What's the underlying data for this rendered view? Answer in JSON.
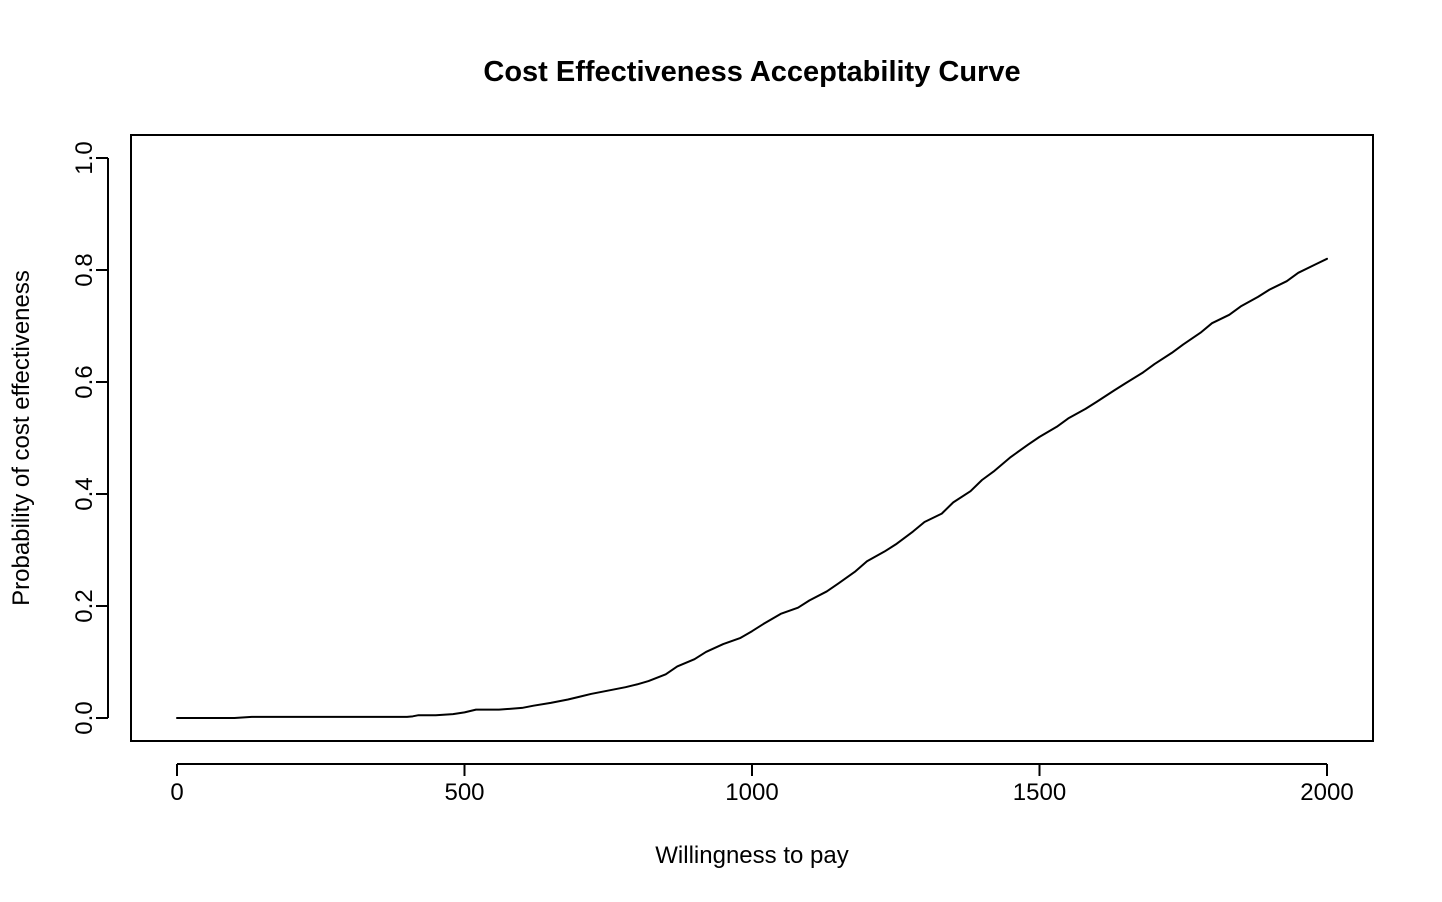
{
  "chart_data": {
    "type": "line",
    "title": "Cost Effectiveness Acceptability Curve",
    "xlabel": "Willingness to pay",
    "ylabel": "Probability of cost effectiveness",
    "xlim": [
      0,
      2000
    ],
    "ylim": [
      0,
      1
    ],
    "xticks": [
      0,
      500,
      1000,
      1500,
      2000
    ],
    "xtick_labels": [
      "0",
      "500",
      "1000",
      "1500",
      "2000"
    ],
    "yticks": [
      0,
      0.2,
      0.4,
      0.6,
      0.8,
      1.0
    ],
    "ytick_labels": [
      "0.0",
      "0.2",
      "0.4",
      "0.6",
      "0.8",
      "1.0"
    ],
    "grid": false,
    "line_color": "#000000",
    "series": [
      {
        "x": [
          0,
          100,
          130,
          200,
          300,
          400,
          410,
          420,
          450,
          480,
          500,
          520,
          540,
          560,
          600,
          620,
          650,
          680,
          700,
          720,
          750,
          780,
          800,
          820,
          850,
          870,
          900,
          920,
          950,
          980,
          1000,
          1020,
          1050,
          1080,
          1100,
          1130,
          1150,
          1180,
          1200,
          1230,
          1250,
          1280,
          1300,
          1330,
          1350,
          1380,
          1400,
          1420,
          1450,
          1480,
          1500,
          1530,
          1550,
          1580,
          1600,
          1630,
          1650,
          1680,
          1700,
          1730,
          1750,
          1780,
          1800,
          1830,
          1850,
          1880,
          1900,
          1930,
          1950,
          1980,
          2000
        ],
        "y": [
          0.0,
          0.0,
          0.002,
          0.002,
          0.002,
          0.002,
          0.003,
          0.005,
          0.005,
          0.007,
          0.01,
          0.015,
          0.015,
          0.015,
          0.018,
          0.022,
          0.027,
          0.033,
          0.038,
          0.043,
          0.049,
          0.055,
          0.06,
          0.066,
          0.078,
          0.092,
          0.105,
          0.118,
          0.132,
          0.143,
          0.155,
          0.168,
          0.186,
          0.197,
          0.21,
          0.226,
          0.24,
          0.262,
          0.28,
          0.297,
          0.31,
          0.333,
          0.35,
          0.365,
          0.385,
          0.405,
          0.425,
          0.44,
          0.466,
          0.488,
          0.502,
          0.52,
          0.535,
          0.552,
          0.565,
          0.585,
          0.598,
          0.617,
          0.632,
          0.652,
          0.667,
          0.688,
          0.705,
          0.72,
          0.735,
          0.752,
          0.765,
          0.78,
          0.795,
          0.81,
          0.82
        ]
      }
    ]
  }
}
